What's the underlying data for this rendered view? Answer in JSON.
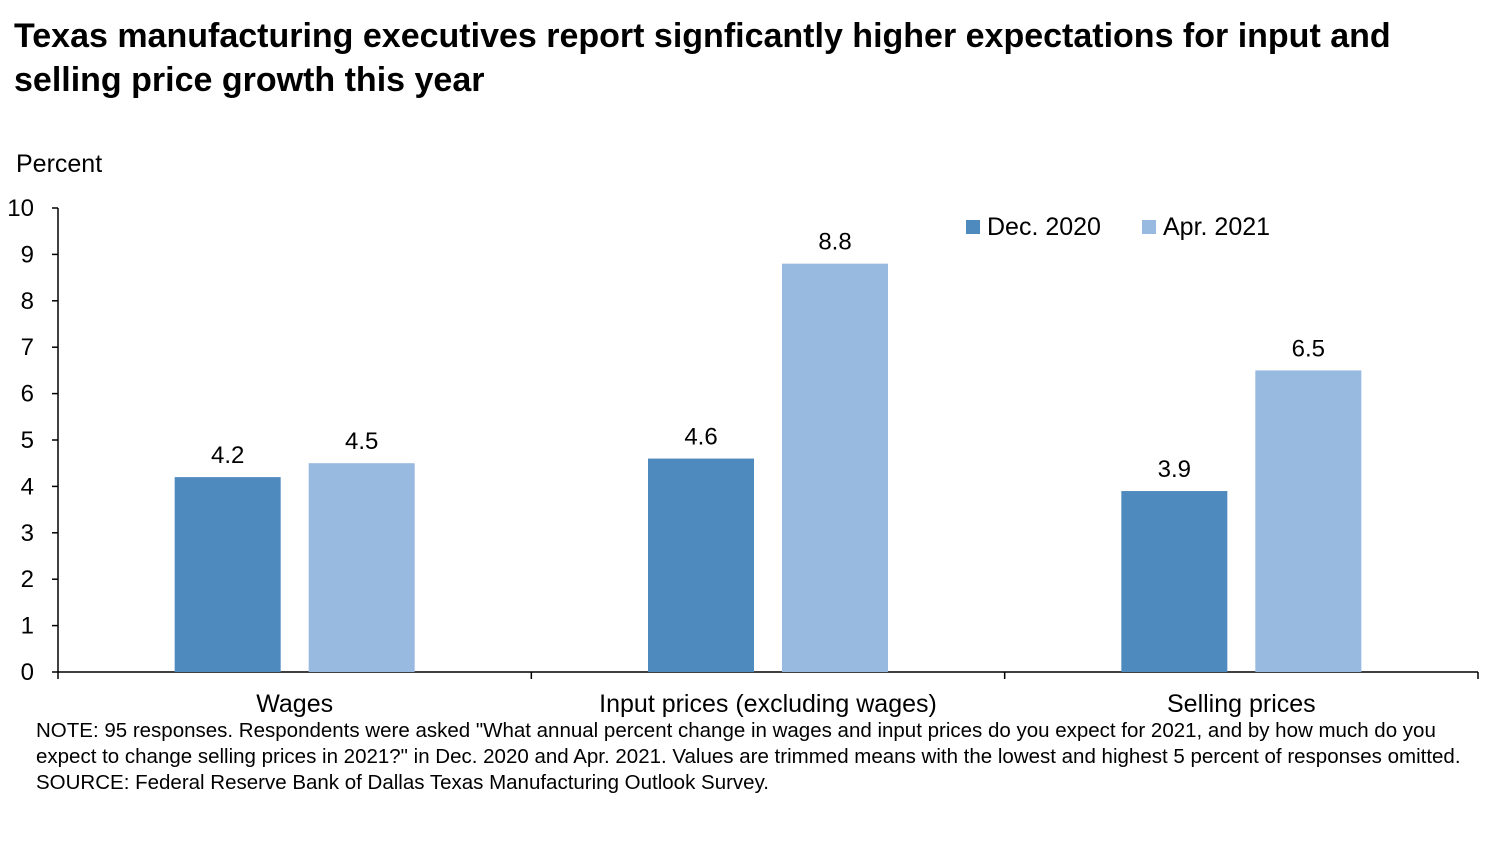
{
  "title": "Texas manufacturing executives report signficantly higher expectations for input and selling price growth this year",
  "chart_data": {
    "type": "bar",
    "title": "Texas manufacturing executives report signficantly higher expectations for input and selling price growth this year",
    "ylabel": "Percent",
    "xlabel": "",
    "categories": [
      "Wages",
      "Input prices (excluding wages)",
      "Selling prices"
    ],
    "series": [
      {
        "name": "Dec. 2020",
        "values": [
          4.2,
          4.6,
          3.9
        ],
        "color": "#4F8ABE"
      },
      {
        "name": "Apr. 2021",
        "values": [
          4.5,
          8.8,
          6.5
        ],
        "color": "#98B9E0"
      }
    ],
    "ylim": [
      0,
      10
    ],
    "yticks": [
      0,
      1,
      2,
      3,
      4,
      5,
      6,
      7,
      8,
      9,
      10
    ],
    "grid": false,
    "legend": "top-right"
  },
  "notes": {
    "note": "NOTE: 95 responses. Respondents were asked \"What annual percent change in wages and input prices do you expect for 2021, and by how much do you expect to change selling prices in 2021?\" in Dec. 2020 and Apr. 2021. Values are trimmed means with the lowest and highest 5 percent of responses omitted.",
    "source": "SOURCE: Federal Reserve Bank of Dallas Texas Manufacturing Outlook Survey."
  }
}
